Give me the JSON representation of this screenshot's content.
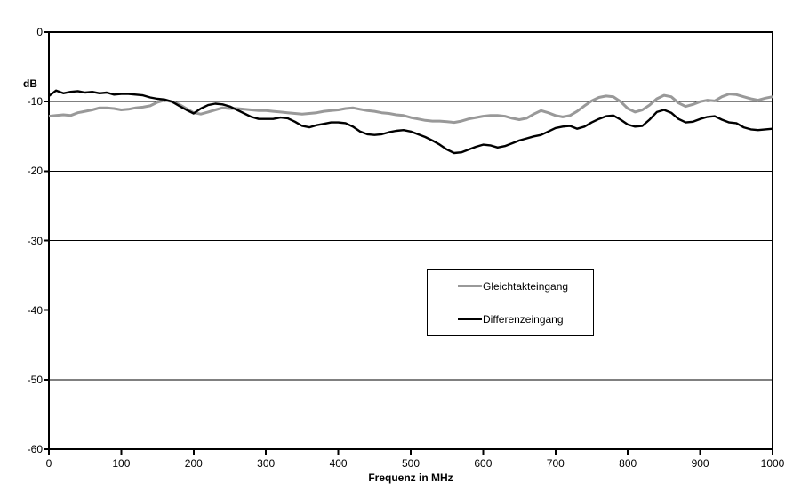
{
  "chart_data": {
    "type": "line",
    "title": "",
    "xlabel": "Frequenz in MHz",
    "ylabel": "dB",
    "xlim": [
      0,
      1000
    ],
    "ylim": [
      -60,
      0
    ],
    "xticks": [
      0,
      100,
      200,
      300,
      400,
      500,
      600,
      700,
      800,
      900,
      1000
    ],
    "yticks": [
      0,
      -10,
      -20,
      -30,
      -40,
      -50,
      -60
    ],
    "grid": "horizontal",
    "legend_position": "center",
    "x": [
      0,
      10,
      20,
      30,
      40,
      50,
      60,
      70,
      80,
      90,
      100,
      110,
      120,
      130,
      140,
      150,
      160,
      170,
      180,
      190,
      200,
      210,
      220,
      230,
      240,
      250,
      260,
      270,
      280,
      290,
      300,
      310,
      320,
      330,
      340,
      350,
      360,
      370,
      380,
      390,
      400,
      410,
      420,
      430,
      440,
      450,
      460,
      470,
      480,
      490,
      500,
      510,
      520,
      530,
      540,
      550,
      560,
      570,
      580,
      590,
      600,
      610,
      620,
      630,
      640,
      650,
      660,
      670,
      680,
      690,
      700,
      710,
      720,
      730,
      740,
      750,
      760,
      770,
      780,
      790,
      800,
      810,
      820,
      830,
      840,
      850,
      860,
      870,
      880,
      890,
      900,
      910,
      920,
      930,
      940,
      950,
      960,
      970,
      980,
      990,
      1000
    ],
    "series": [
      {
        "name": "Gleichtakteingang",
        "color": "#999999",
        "values": [
          -12.1,
          -12.0,
          -11.9,
          -12.0,
          -11.6,
          -11.4,
          -11.2,
          -10.9,
          -10.9,
          -11.0,
          -11.2,
          -11.1,
          -10.9,
          -10.8,
          -10.6,
          -10.1,
          -9.8,
          -10.0,
          -10.4,
          -11.0,
          -11.6,
          -11.8,
          -11.5,
          -11.2,
          -10.9,
          -11.0,
          -11.0,
          -11.1,
          -11.2,
          -11.3,
          -11.3,
          -11.4,
          -11.5,
          -11.6,
          -11.7,
          -11.8,
          -11.7,
          -11.6,
          -11.4,
          -11.3,
          -11.2,
          -11.0,
          -10.9,
          -11.1,
          -11.3,
          -11.4,
          -11.6,
          -11.7,
          -11.9,
          -12.0,
          -12.3,
          -12.5,
          -12.7,
          -12.8,
          -12.8,
          -12.9,
          -13.0,
          -12.8,
          -12.5,
          -12.3,
          -12.1,
          -12.0,
          -12.0,
          -12.1,
          -12.4,
          -12.6,
          -12.4,
          -11.8,
          -11.3,
          -11.6,
          -12.0,
          -12.2,
          -12.0,
          -11.4,
          -10.6,
          -9.9,
          -9.4,
          -9.2,
          -9.3,
          -10.0,
          -11.0,
          -11.5,
          -11.2,
          -10.5,
          -9.6,
          -9.1,
          -9.3,
          -10.2,
          -10.7,
          -10.4,
          -10.0,
          -9.8,
          -9.9,
          -9.3,
          -8.9,
          -9.0,
          -9.3,
          -9.6,
          -9.8,
          -9.5,
          -9.3
        ]
      },
      {
        "name": "Differenzeingang",
        "color": "#000000",
        "values": [
          -9.2,
          -8.4,
          -8.8,
          -8.6,
          -8.5,
          -8.7,
          -8.6,
          -8.8,
          -8.7,
          -9.0,
          -8.9,
          -8.9,
          -9.0,
          -9.1,
          -9.4,
          -9.6,
          -9.7,
          -10.0,
          -10.6,
          -11.2,
          -11.7,
          -11.0,
          -10.5,
          -10.3,
          -10.4,
          -10.7,
          -11.2,
          -11.7,
          -12.2,
          -12.5,
          -12.5,
          -12.5,
          -12.3,
          -12.4,
          -12.9,
          -13.5,
          -13.7,
          -13.4,
          -13.2,
          -13.0,
          -13.0,
          -13.1,
          -13.6,
          -14.3,
          -14.7,
          -14.8,
          -14.7,
          -14.4,
          -14.2,
          -14.1,
          -14.3,
          -14.7,
          -15.1,
          -15.6,
          -16.2,
          -16.9,
          -17.4,
          -17.3,
          -16.9,
          -16.5,
          -16.2,
          -16.3,
          -16.6,
          -16.4,
          -16.0,
          -15.6,
          -15.3,
          -15.0,
          -14.8,
          -14.3,
          -13.8,
          -13.6,
          -13.5,
          -13.9,
          -13.6,
          -13.0,
          -12.5,
          -12.1,
          -12.0,
          -12.6,
          -13.3,
          -13.6,
          -13.5,
          -12.6,
          -11.5,
          -11.2,
          -11.6,
          -12.5,
          -13.0,
          -12.9,
          -12.5,
          -12.2,
          -12.1,
          -12.6,
          -13.0,
          -13.1,
          -13.7,
          -14.0,
          -14.1,
          -14.0,
          -13.9
        ]
      }
    ]
  },
  "colors": {
    "background": "#ffffff",
    "axis": "#000000",
    "gridline": "#000000",
    "legend_border": "#000000"
  }
}
